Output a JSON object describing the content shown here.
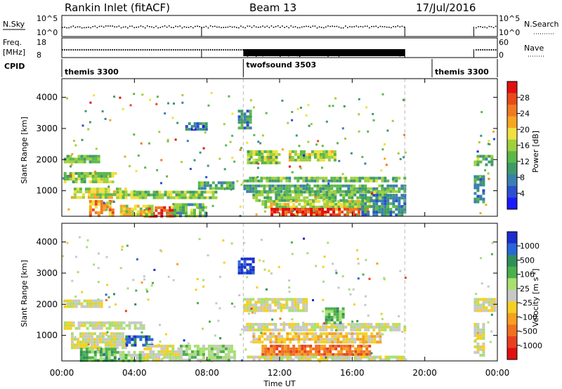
{
  "header": {
    "station": "Rankin Inlet (fitACF)",
    "beam": "Beam 13",
    "date": "17/Jul/2016"
  },
  "status": {
    "nsky_label": "N.Sky",
    "nsky_ticks": [
      "10^5",
      "10^0"
    ],
    "nsearch_label": "N.Search",
    "nsearch_ticks": [
      "10^5",
      "10^0"
    ],
    "freq_label": "Freq.",
    "freq_unit": "[MHz]",
    "freq_ticks": [
      "18",
      "8"
    ],
    "nave_label": "Nave",
    "nave_ticks": [
      "60",
      "0"
    ],
    "cpid_label": "CPID",
    "cpid_segments": [
      {
        "name": "themis 3300",
        "start": 0,
        "end": 10
      },
      {
        "name": "twofsound 3503",
        "start": 10,
        "end": 18.9
      },
      {
        "name": "themis 3300",
        "start": 20.4,
        "end": 22.7
      }
    ],
    "data_gaps_hours": [
      [
        18.9,
        22.7
      ]
    ]
  },
  "chart_data": [
    {
      "type": "heatmap",
      "panel": "power",
      "xlabel": "",
      "ylabel": "Slant Range [km]",
      "xlim": [
        0,
        24
      ],
      "ylim": [
        180,
        4600
      ],
      "yticks": [
        1000,
        2000,
        3000,
        4000
      ],
      "colorbar_label": "Power [dB]",
      "colorbar_ticks": [
        "28",
        "24",
        "20",
        "16",
        "12",
        "8",
        "4"
      ],
      "colorbar_range": [
        0,
        30
      ],
      "colors": [
        "#1a1aff",
        "#2b4fcf",
        "#3a7fb0",
        "#3f9a6a",
        "#5cb84a",
        "#9fd13e",
        "#f0e040",
        "#f5a623",
        "#f07a20",
        "#e84a1a",
        "#e01010"
      ],
      "regions": [
        {
          "t": [
            0.1,
            2.0
          ],
          "r": [
            1900,
            2150
          ],
          "v": 12
        },
        {
          "t": [
            0.1,
            3.0
          ],
          "r": [
            1300,
            1600
          ],
          "v": 14
        },
        {
          "t": [
            0.5,
            3.5
          ],
          "r": [
            800,
            1100
          ],
          "v": 16
        },
        {
          "t": [
            1.5,
            2.8
          ],
          "r": [
            200,
            700
          ],
          "v": 22
        },
        {
          "t": [
            3.0,
            8.5
          ],
          "r": [
            750,
            1000
          ],
          "v": 14
        },
        {
          "t": [
            4.5,
            6.2
          ],
          "r": [
            200,
            500
          ],
          "v": 28
        },
        {
          "t": [
            3.2,
            5.0
          ],
          "r": [
            200,
            550
          ],
          "v": 18
        },
        {
          "t": [
            6.0,
            8.0
          ],
          "r": [
            200,
            600
          ],
          "v": 12
        },
        {
          "t": [
            7.5,
            9.5
          ],
          "r": [
            1100,
            1300
          ],
          "v": 10
        },
        {
          "t": [
            6.8,
            8.0
          ],
          "r": [
            3000,
            3200
          ],
          "v": 6
        },
        {
          "t": [
            9.7,
            10.4
          ],
          "r": [
            3000,
            3600
          ],
          "v": 8
        },
        {
          "t": [
            10.2,
            12.0
          ],
          "r": [
            1900,
            2300
          ],
          "v": 14
        },
        {
          "t": [
            10.0,
            18.9
          ],
          "r": [
            1300,
            1450
          ],
          "v": 12
        },
        {
          "t": [
            10.0,
            18.9
          ],
          "r": [
            1000,
            1200
          ],
          "v": 10
        },
        {
          "t": [
            10.5,
            17.8
          ],
          "r": [
            700,
            1000
          ],
          "v": 12
        },
        {
          "t": [
            11.0,
            17.0
          ],
          "r": [
            450,
            700
          ],
          "v": 16
        },
        {
          "t": [
            11.5,
            16.8
          ],
          "r": [
            200,
            450
          ],
          "v": 27
        },
        {
          "t": [
            12.5,
            15.0
          ],
          "r": [
            2000,
            2300
          ],
          "v": 16
        },
        {
          "t": [
            16.5,
            18.9
          ],
          "r": [
            200,
            900
          ],
          "v": 8
        },
        {
          "t": [
            22.7,
            23.7
          ],
          "r": [
            1800,
            2150
          ],
          "v": 12
        },
        {
          "t": [
            22.7,
            23.2
          ],
          "r": [
            600,
            1500
          ],
          "v": 8
        }
      ]
    },
    {
      "type": "heatmap",
      "panel": "velocity",
      "xlabel": "Time UT",
      "ylabel": "Slant Range [km]",
      "xlim": [
        0,
        24
      ],
      "ylim": [
        180,
        4600
      ],
      "xticks": [
        "00:00",
        "04:00",
        "08:00",
        "12:00",
        "16:00",
        "20:00",
        "00:00"
      ],
      "yticks": [
        1000,
        2000,
        3000,
        4000
      ],
      "colorbar_label": "Velocity [m s^-1]",
      "colorbar_ticks": [
        "1000",
        "500",
        "100",
        "25",
        "-25",
        "-100",
        "-500",
        "-1000"
      ],
      "colors": [
        "#1a2fcc",
        "#2a66d9",
        "#2f8f5a",
        "#4bb04a",
        "#a8e070",
        "#c8c8c8",
        "#f5d020",
        "#f5a020",
        "#f07020",
        "#e84020",
        "#e01010"
      ],
      "regions": [
        {
          "t": [
            0.1,
            2.2
          ],
          "r": [
            1900,
            2150
          ],
          "c": 5
        },
        {
          "t": [
            0.1,
            4.5
          ],
          "r": [
            1250,
            1450
          ],
          "c": 5
        },
        {
          "t": [
            0.5,
            3.5
          ],
          "r": [
            600,
            1100
          ],
          "c": 5
        },
        {
          "t": [
            1.0,
            3.0
          ],
          "r": [
            200,
            600
          ],
          "c": 3
        },
        {
          "t": [
            3.5,
            5.0
          ],
          "r": [
            700,
            1000
          ],
          "c": 1
        },
        {
          "t": [
            4.5,
            6.5
          ],
          "r": [
            200,
            700
          ],
          "c": 5
        },
        {
          "t": [
            3.0,
            4.5
          ],
          "r": [
            200,
            500
          ],
          "c": 4
        },
        {
          "t": [
            6.5,
            9.5
          ],
          "r": [
            200,
            700
          ],
          "c": 4
        },
        {
          "t": [
            9.7,
            10.5
          ],
          "r": [
            3000,
            3500
          ],
          "c": 0
        },
        {
          "t": [
            10.0,
            13.5
          ],
          "r": [
            1800,
            2200
          ],
          "c": 5
        },
        {
          "t": [
            10.0,
            18.9
          ],
          "r": [
            1150,
            1400
          ],
          "c": 5
        },
        {
          "t": [
            10.5,
            17.5
          ],
          "r": [
            800,
            1100
          ],
          "c": 6
        },
        {
          "t": [
            11.0,
            17.0
          ],
          "r": [
            350,
            700
          ],
          "c": 8
        },
        {
          "t": [
            10.2,
            18.9
          ],
          "r": [
            200,
            350
          ],
          "c": 5
        },
        {
          "t": [
            14.5,
            15.5
          ],
          "r": [
            1400,
            1900
          ],
          "c": 3
        },
        {
          "t": [
            22.7,
            23.8
          ],
          "r": [
            1800,
            2200
          ],
          "c": 5
        },
        {
          "t": [
            22.7,
            23.3
          ],
          "r": [
            400,
            1400
          ],
          "c": 5
        }
      ]
    }
  ]
}
